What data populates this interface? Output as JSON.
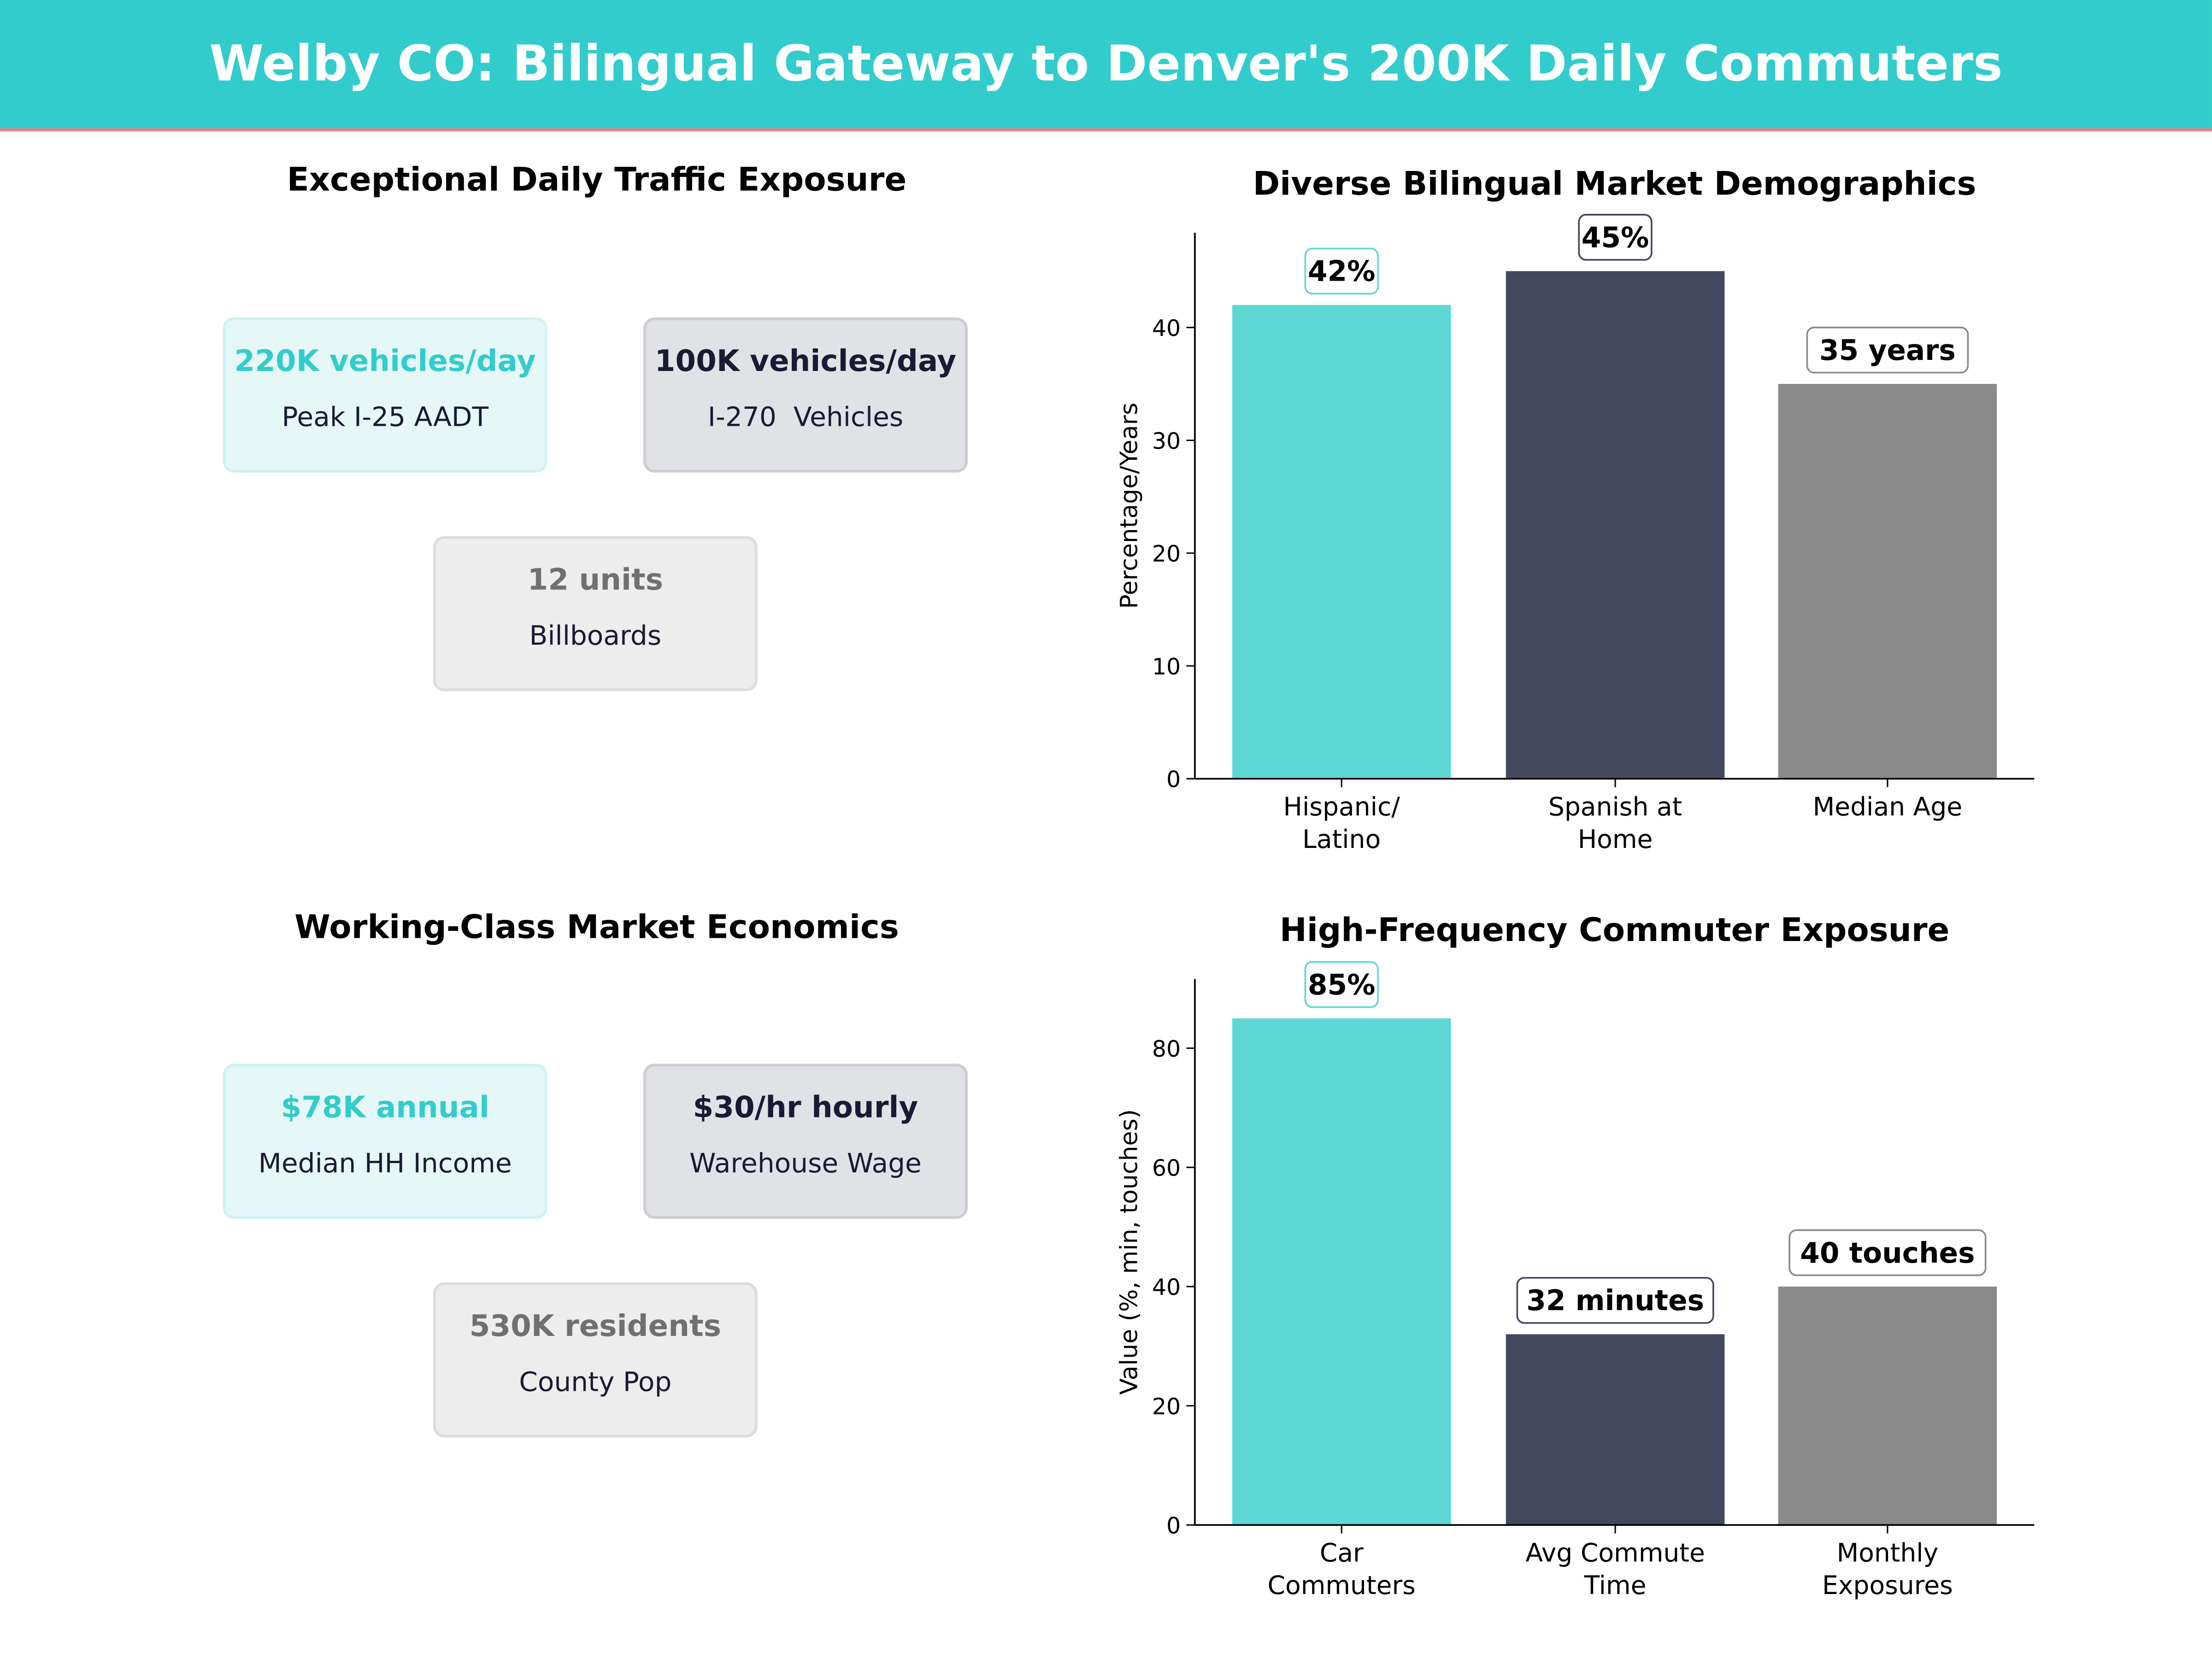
{
  "title": "Welby CO: Bilingual Gateway to Denver's 200K Daily Commuters",
  "colors": {
    "header": "#33cccc",
    "accent": "#33cccc",
    "bar1": "#5dd8d5",
    "bar2": "#45495f",
    "bar3": "#8a8a8a"
  },
  "traffic": {
    "title": "Exceptional Daily Traffic Exposure",
    "cards": [
      {
        "value": "220K vehicles/day",
        "label": "Peak I-25 AADT"
      },
      {
        "value": "100K vehicles/day",
        "label": "I-270  Vehicles"
      },
      {
        "value": "12 units",
        "label": "Billboards"
      }
    ]
  },
  "economics": {
    "title": "Working-Class Market Economics",
    "cards": [
      {
        "value": "$78K annual",
        "label": "Median HH Income"
      },
      {
        "value": "$30/hr hourly",
        "label": "Warehouse Wage"
      },
      {
        "value": "530K residents",
        "label": "County Pop"
      }
    ]
  },
  "chart_data": [
    {
      "type": "bar",
      "title": "Diverse Bilingual Market Demographics",
      "ylabel": "Percentage/Years",
      "categories": [
        "Hispanic/\nLatino",
        "Spanish at\nHome",
        "Median Age"
      ],
      "values": [
        42,
        45,
        35
      ],
      "data_labels": [
        "42%",
        "45%",
        "35 years"
      ],
      "ylim": [
        0,
        48.4
      ],
      "yticks": [
        0,
        10,
        20,
        30,
        40
      ],
      "grid": false
    },
    {
      "type": "bar",
      "title": "High-Frequency Commuter Exposure",
      "ylabel": "Value (%, min, touches)",
      "categories": [
        "Car\nCommuters",
        "Avg Commute\nTime",
        "Monthly\nExposures"
      ],
      "values": [
        85,
        32,
        40
      ],
      "data_labels": [
        "85%",
        "32 minutes",
        "40 touches"
      ],
      "ylim": [
        0,
        91.6
      ],
      "yticks": [
        0,
        20,
        40,
        60,
        80
      ],
      "grid": false
    }
  ]
}
